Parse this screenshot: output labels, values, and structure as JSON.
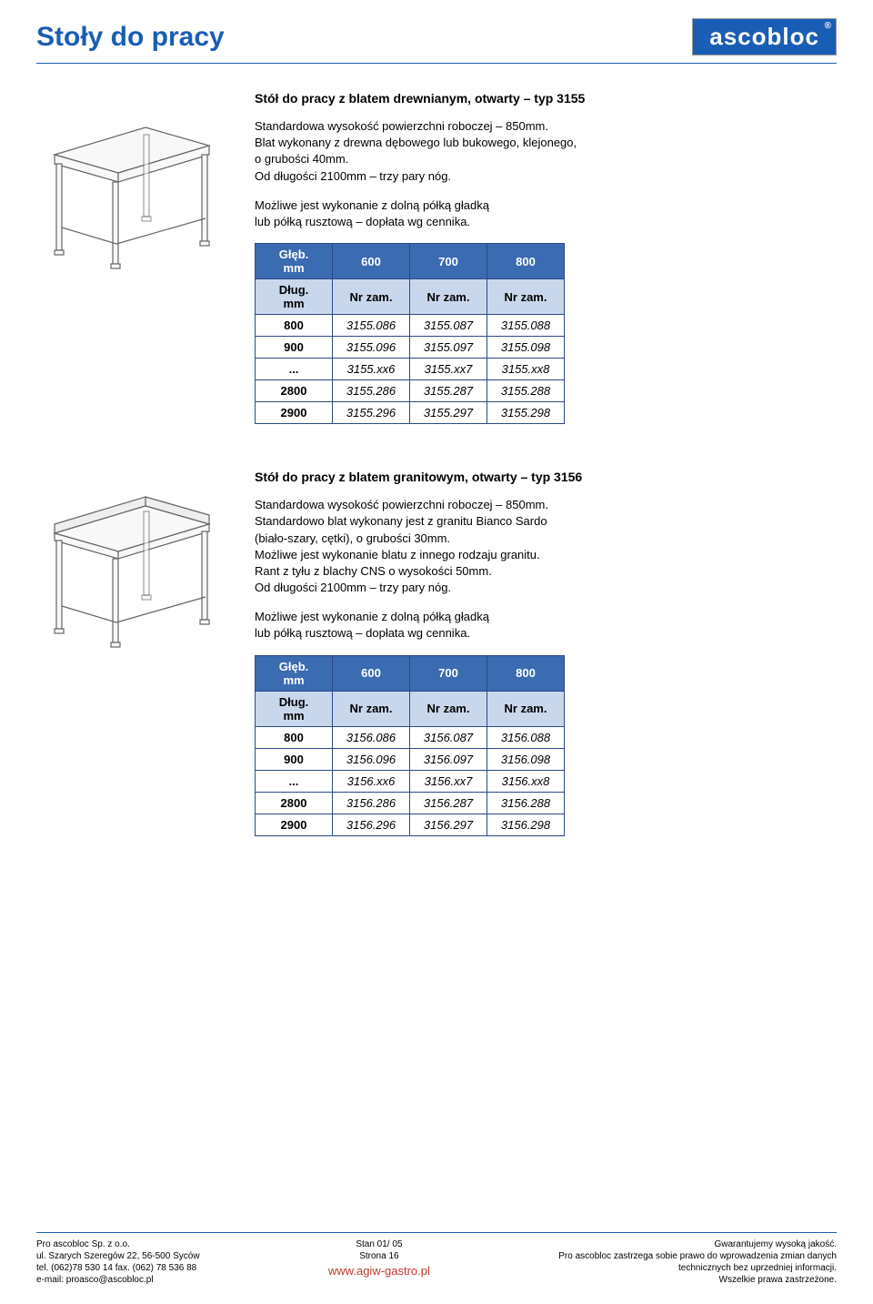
{
  "header": {
    "title": "Stoły do pracy",
    "logo_text": "ascobloc",
    "reg_mark": "®"
  },
  "section1": {
    "title": "Stół do pracy z blatem drewnianym, otwarty – typ 3155",
    "desc1": "Standardowa wysokość powierzchni roboczej – 850mm.\nBlat wykonany z drewna dębowego lub bukowego, klejonego,\no grubości 40mm.\nOd długości 2100mm – trzy pary nóg.",
    "desc2": "Możliwe jest wykonanie z dolną półką gładką\nlub półką rusztową – dopłata wg cennika.",
    "table": {
      "head1": [
        "Głęb.\nmm",
        "600",
        "700",
        "800"
      ],
      "head2": [
        "Dług.\nmm",
        "Nr zam.",
        "Nr zam.",
        "Nr zam."
      ],
      "rows": [
        [
          "800",
          "3155.086",
          "3155.087",
          "3155.088"
        ],
        [
          "900",
          "3155.096",
          "3155.097",
          "3155.098"
        ],
        [
          "...",
          "3155.xx6",
          "3155.xx7",
          "3155.xx8"
        ],
        [
          "2800",
          "3155.286",
          "3155.287",
          "3155.288"
        ],
        [
          "2900",
          "3155.296",
          "3155.297",
          "3155.298"
        ]
      ]
    }
  },
  "section2": {
    "title": "Stół do pracy z blatem granitowym, otwarty – typ 3156",
    "desc1": "Standardowa wysokość powierzchni roboczej – 850mm.\nStandardowo blat wykonany jest z granitu Bianco Sardo\n(biało-szary, cętki), o grubości 30mm.\nMożliwe jest wykonanie blatu z innego rodzaju granitu.\nRant z tyłu z blachy CNS o wysokości 50mm.\nOd długości 2100mm – trzy pary nóg.",
    "desc2": "Możliwe jest wykonanie z dolną półką gładką\nlub półką rusztową – dopłata wg cennika.",
    "table": {
      "head1": [
        "Głęb.\nmm",
        "600",
        "700",
        "800"
      ],
      "head2": [
        "Dług.\nmm",
        "Nr zam.",
        "Nr zam.",
        "Nr zam."
      ],
      "rows": [
        [
          "800",
          "3156.086",
          "3156.087",
          "3156.088"
        ],
        [
          "900",
          "3156.096",
          "3156.097",
          "3156.098"
        ],
        [
          "...",
          "3156.xx6",
          "3156.xx7",
          "3156.xx8"
        ],
        [
          "2800",
          "3156.286",
          "3156.287",
          "3156.288"
        ],
        [
          "2900",
          "3156.296",
          "3156.297",
          "3156.298"
        ]
      ]
    }
  },
  "footer": {
    "left": "Pro ascobloc Sp. z o.o.\nul. Szarych Szeregów 22, 56-500 Syców\ntel. (062)78 530 14    fax. (062) 78 536 88\ne-mail: proasco@ascobloc.pl",
    "center": "Stan 01/ 05\nStrona 16",
    "right": "Gwarantujemy wysoką jakość.\nPro ascobloc zastrzega sobie prawo do wprowadzenia zmian danych\ntechnicznych bez uprzedniej informacji.\nWszelkie prawa zastrzeżone.",
    "url": "www.agiw-gastro.pl"
  },
  "colors": {
    "brand_blue": "#1a5db4",
    "header_bg": "#3b6bb0",
    "subheader_bg": "#c9d7ec",
    "border": "#2a4a8a",
    "url_red": "#c0392b"
  }
}
